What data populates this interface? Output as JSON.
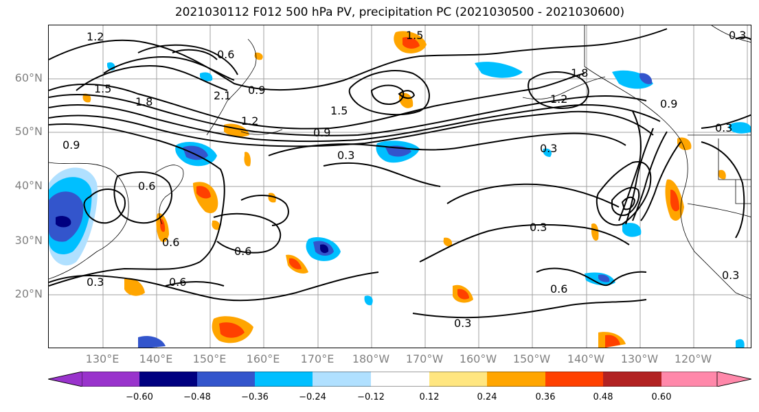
{
  "title": "2021030112 F012 500 hPa PV, precipitation PC (2021030500 - 2021030600)",
  "lat_labels": [
    "60°N",
    "50°N",
    "40°N",
    "30°N",
    "20°N"
  ],
  "lon_labels": [
    "130°E",
    "140°E",
    "150°E",
    "160°E",
    "170°E",
    "180°W",
    "170°W",
    "160°W",
    "150°W",
    "140°W",
    "130°W",
    "120°W"
  ],
  "contour_labels": [
    "1.2",
    "0.6",
    "1.5",
    "1.8",
    "2.1",
    "0.9",
    "1.5",
    "1.8",
    "1.2",
    "1.5",
    "0.9",
    "1.2",
    "0.9",
    "0.3",
    "0.3",
    "0.3",
    "0.3",
    "0.9",
    "0.6",
    "0.6",
    "0.6",
    "0.3",
    "0.6",
    "0.3",
    "0.6",
    "0.3",
    "0.3"
  ],
  "colorbar": {
    "colors": [
      "#9933cc",
      "#000080",
      "#3355cc",
      "#00bfff",
      "#b0e0ff",
      "#ffffff",
      "#ffe680",
      "#ffa500",
      "#ff4000",
      "#b22222",
      "#ff88aa"
    ],
    "ticks": [
      "−0.60",
      "−0.48",
      "−0.36",
      "−0.24",
      "−0.12",
      "0.12",
      "0.24",
      "0.36",
      "0.48",
      "0.60"
    ]
  }
}
